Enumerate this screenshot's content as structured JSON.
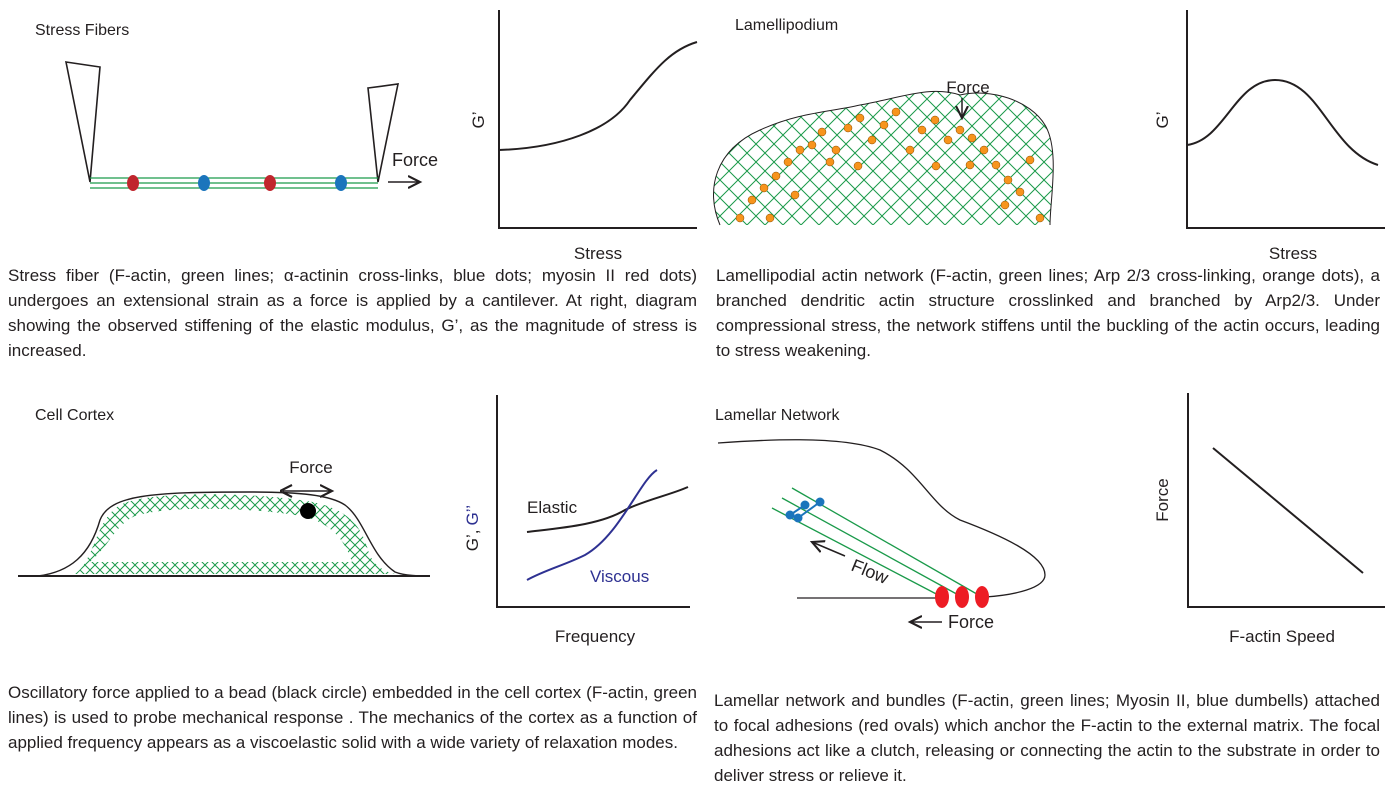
{
  "panels": [
    {
      "title": "Stress Fibers",
      "force_label": "Force",
      "graph": {
        "y_label": "G’",
        "x_label": "Stress"
      },
      "caption": "Stress fiber (F-actin, green lines; α-actinin cross-links, blue dots; myosin II red dots) undergoes an extensional strain as a force is applied by a cantilever. At right, diagram showing the observed stiffening of the elastic modulus, G’, as the magnitude of stress is increased."
    },
    {
      "title": "Lamellipodium",
      "force_label": "Force",
      "graph": {
        "y_label": "G’",
        "x_label": "Stress"
      },
      "caption": "Lamellipodial actin network (F-actin, green lines; Arp 2/3 cross-linking, orange dots), a branched dendritic actin structure crosslinked and branched by Arp2/3. Under compressional stress, the network stiffens until the buckling of the actin occurs, leading to stress weakening."
    },
    {
      "title": "Cell Cortex",
      "force_label": "Force",
      "graph": {
        "y_label": [
          "G’,",
          "G’’"
        ],
        "x_label": "Frequency",
        "curves": [
          "Elastic",
          "Viscous"
        ]
      },
      "caption": "Oscillatory force applied to a bead (black circle) embedded in the cell cortex (F-actin, green lines) is used to probe mechanical response . The mechanics of the cortex as a function of applied frequency appears as a viscoelastic solid with a wide variety of relaxation modes."
    },
    {
      "title": "Lamellar Network",
      "flow_label": "Flow",
      "force_label": "Force",
      "graph": {
        "y_label": "Force",
        "x_label": "F-actin Speed"
      },
      "caption": "Lamellar network and bundles (F-actin, green lines; Myosin II, blue dumbells) attached to focal adhesions (red ovals) which anchor the F-actin to the external matrix. The focal adhesions act like a clutch, releasing or connecting the actin to the substrate in order to deliver stress or relieve it."
    }
  ]
}
